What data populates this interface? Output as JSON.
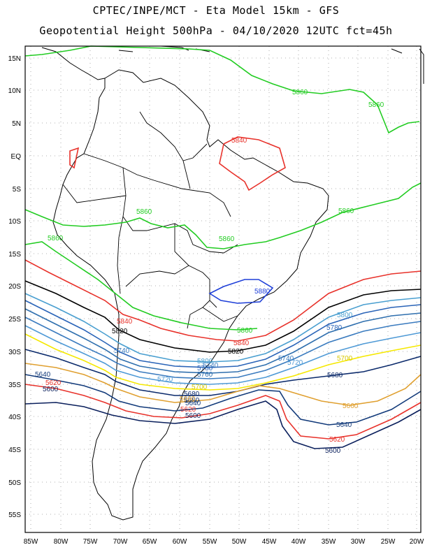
{
  "title_line1": "CPTEC/INPE/MCT - Eta Model 15km - GFS",
  "title_line2": "Geopotential Height 500hPa - 04/10/2020 12UTC fct=45h",
  "lat_labels": [
    "15N",
    "10N",
    "5N",
    "EQ",
    "5S",
    "10S",
    "15S",
    "20S",
    "25S",
    "30S",
    "35S",
    "40S",
    "45S",
    "50S",
    "55S"
  ],
  "lon_labels": [
    "85W",
    "80W",
    "75W",
    "70W",
    "65W",
    "60W",
    "55W",
    "50W",
    "45W",
    "40W",
    "35W",
    "30W",
    "25W",
    "20W"
  ],
  "colors": {
    "c5600": "#0a1f5c",
    "c5620": "#e8322b",
    "c5640": "#123a7a",
    "c5660": "#e0a030",
    "c5680": "#0b2a6b",
    "c5700": "#f5e800",
    "c5720": "#4f9ad6",
    "c5740": "#3a7bbf",
    "c5760": "#2f6fae",
    "c5780": "#2a64b8",
    "c5800": "#4a9fd0",
    "c5820": "#000000",
    "c5840": "#e8322b",
    "c5860": "#22cc22",
    "c5880": "#1e3fd8"
  },
  "contour_labels": {
    "l5860_a": "5860",
    "l5860_b": "5860",
    "l5860_c": "5860",
    "l5860_d": "5860",
    "l5860_e": "5860",
    "l5860_f": "5860",
    "l5860_g": "5860",
    "l5840_a": "5840",
    "l5840_b": "5840",
    "l5840_c": "5840",
    "l5880": "5880",
    "l5820_a": "5820",
    "l5820_b": "5820",
    "l5800_a": "5800",
    "l5800_b": "5800",
    "l5780_a": "5780",
    "l5780_b": "5780",
    "l5760": "5760",
    "l5740_a": "5740",
    "l5740_b": "5740",
    "l5740_c": "5740",
    "l5720_a": "5720",
    "l5720_b": "5720",
    "l5700_a": "5700",
    "l5700_b": "5700",
    "l5680_a": "5680",
    "l5680_b": "5680",
    "l5680_c": "5680",
    "l5660_a": "5660",
    "l5660_b": "5660",
    "l5640_a": "5640",
    "l5640_b": "5640",
    "l5640_c": "5640",
    "l5620_a": "5620",
    "l5620_b": "5620",
    "l5620_c": "5620",
    "l5600_a": "5600",
    "l5600_b": "5600",
    "l5600_c": "5600"
  }
}
